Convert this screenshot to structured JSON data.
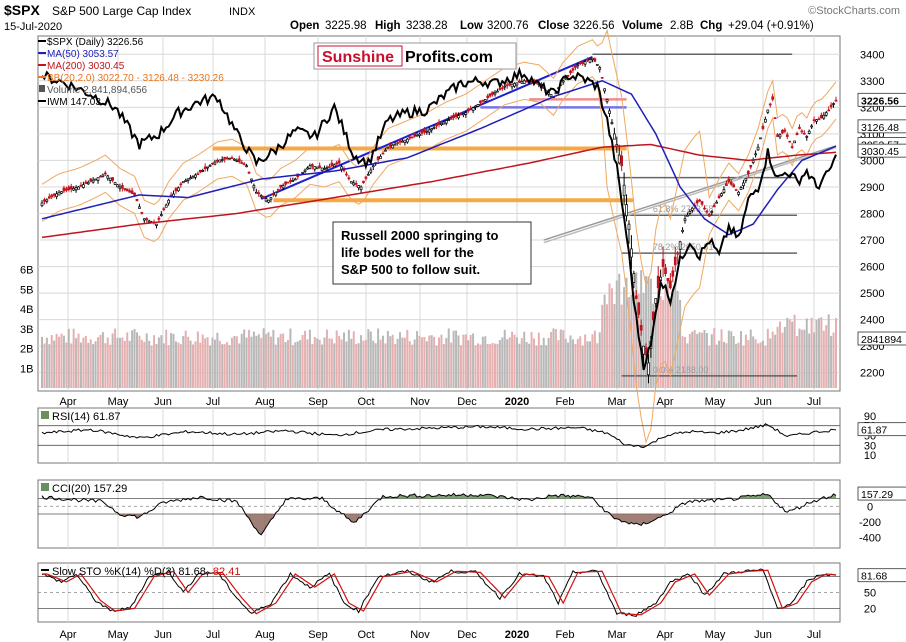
{
  "header": {
    "symbol": "$SPX",
    "name": "S&P 500 Large Cap Index",
    "exchange": "INDX",
    "date": "15-Jul-2020",
    "open_label": "Open",
    "open": "3225.98",
    "high_label": "High",
    "high": "3238.28",
    "low_label": "Low",
    "low": "3200.76",
    "close_label": "Close",
    "close": "3226.56",
    "volume_label": "Volume",
    "volume": "2.8B",
    "chg_label": "Chg",
    "chg": "+29.04 (+0.91%)",
    "watermark": "©StockCharts.com"
  },
  "legend": [
    {
      "text": "$SPX (Daily) 3226.56",
      "color": "#000000"
    },
    {
      "text": "MA(50) 3053.57",
      "color": "#1f1fb8"
    },
    {
      "text": "MA(200) 3030.45",
      "color": "#c0141e"
    },
    {
      "text": "BB(20,2.0) 3022.70 - 3126.48 - 3230.26",
      "color": "#e8771f"
    },
    {
      "text": "Volume 2,841,894,656",
      "color": "#555555"
    },
    {
      "text": "IWM 147.03",
      "color": "#000000"
    }
  ],
  "logo": {
    "part1": "Sunshine",
    "part2": "Profits.com",
    "color1": "#c8102e"
  },
  "annotation": "Russell 2000 springing to\nlife bodes well for the\nS&P 500 to follow suit.",
  "colors": {
    "up": "#000000",
    "down": "#c0141e",
    "ma50": "#1f1fb8",
    "ma200": "#c0141e",
    "bb": "#f0a860",
    "grid": "#d8d8d8",
    "fib": "#555555",
    "support": "#f5a030",
    "resistance": "#f08080",
    "trendline": "#2020d0",
    "volume": "#bdbdbd"
  },
  "chart_data": [
    {
      "type": "candlestick",
      "title": "$SPX S&P 500 Large Cap Index INDX",
      "ylim": [
        2150,
        3450
      ],
      "yticks": [
        2200,
        2300,
        2400,
        2500,
        2600,
        2700,
        2800,
        2900,
        3000,
        3100,
        3200,
        3300,
        3400
      ],
      "volume_ticks": [
        "6B",
        "5B",
        "4B",
        "3B",
        "2B",
        "1B"
      ],
      "volume_ylim_billions": [
        0,
        7.5
      ],
      "x_ticks": [
        "Apr",
        "May",
        "Jun",
        "Jul",
        "Aug",
        "Sep",
        "Oct",
        "Nov",
        "Dec",
        "2020",
        "Feb",
        "Mar",
        "Apr",
        "May",
        "Jun",
        "Jul"
      ],
      "price_anchors": [
        {
          "t": 0,
          "v": 2840
        },
        {
          "t": 7,
          "v": 2880
        },
        {
          "t": 15,
          "v": 2900
        },
        {
          "t": 22,
          "v": 2930
        },
        {
          "t": 26,
          "v": 2950
        },
        {
          "t": 32,
          "v": 2900
        },
        {
          "t": 38,
          "v": 2870
        },
        {
          "t": 42,
          "v": 2780
        },
        {
          "t": 47,
          "v": 2760
        },
        {
          "t": 52,
          "v": 2850
        },
        {
          "t": 58,
          "v": 2920
        },
        {
          "t": 64,
          "v": 2950
        },
        {
          "t": 72,
          "v": 3000
        },
        {
          "t": 78,
          "v": 3010
        },
        {
          "t": 84,
          "v": 2980
        },
        {
          "t": 88,
          "v": 2880
        },
        {
          "t": 93,
          "v": 2850
        },
        {
          "t": 98,
          "v": 2900
        },
        {
          "t": 104,
          "v": 2930
        },
        {
          "t": 110,
          "v": 2980
        },
        {
          "t": 116,
          "v": 2970
        },
        {
          "t": 122,
          "v": 2990
        },
        {
          "t": 127,
          "v": 2920
        },
        {
          "t": 131,
          "v": 2900
        },
        {
          "t": 136,
          "v": 2980
        },
        {
          "t": 142,
          "v": 3050
        },
        {
          "t": 150,
          "v": 3080
        },
        {
          "t": 158,
          "v": 3110
        },
        {
          "t": 166,
          "v": 3150
        },
        {
          "t": 174,
          "v": 3180
        },
        {
          "t": 182,
          "v": 3230
        },
        {
          "t": 190,
          "v": 3280
        },
        {
          "t": 198,
          "v": 3300
        },
        {
          "t": 204,
          "v": 3290
        },
        {
          "t": 210,
          "v": 3240
        },
        {
          "t": 214,
          "v": 3300
        },
        {
          "t": 220,
          "v": 3360
        },
        {
          "t": 226,
          "v": 3385
        },
        {
          "t": 229,
          "v": 3350
        },
        {
          "t": 232,
          "v": 3230
        },
        {
          "t": 235,
          "v": 3100
        },
        {
          "t": 238,
          "v": 2980
        },
        {
          "t": 241,
          "v": 2760
        },
        {
          "t": 244,
          "v": 2480
        },
        {
          "t": 247,
          "v": 2300
        },
        {
          "t": 249,
          "v": 2237
        },
        {
          "t": 252,
          "v": 2480
        },
        {
          "t": 255,
          "v": 2600
        },
        {
          "t": 258,
          "v": 2520
        },
        {
          "t": 261,
          "v": 2650
        },
        {
          "t": 264,
          "v": 2780
        },
        {
          "t": 267,
          "v": 2820
        },
        {
          "t": 270,
          "v": 2850
        },
        {
          "t": 274,
          "v": 2790
        },
        {
          "t": 278,
          "v": 2860
        },
        {
          "t": 282,
          "v": 2920
        },
        {
          "t": 286,
          "v": 2880
        },
        {
          "t": 290,
          "v": 2950
        },
        {
          "t": 294,
          "v": 3050
        },
        {
          "t": 298,
          "v": 3190
        },
        {
          "t": 300,
          "v": 3230
        },
        {
          "t": 302,
          "v": 3090
        },
        {
          "t": 305,
          "v": 3110
        },
        {
          "t": 308,
          "v": 3050
        },
        {
          "t": 311,
          "v": 3120
        },
        {
          "t": 314,
          "v": 3090
        },
        {
          "t": 317,
          "v": 3150
        },
        {
          "t": 320,
          "v": 3160
        },
        {
          "t": 323,
          "v": 3190
        },
        {
          "t": 326,
          "v": 3226.56
        }
      ],
      "iwm_anchors": [
        {
          "t": 0,
          "v": 3320
        },
        {
          "t": 10,
          "v": 3290
        },
        {
          "t": 20,
          "v": 3250
        },
        {
          "t": 30,
          "v": 3200
        },
        {
          "t": 40,
          "v": 3060
        },
        {
          "t": 48,
          "v": 3100
        },
        {
          "t": 56,
          "v": 3180
        },
        {
          "t": 64,
          "v": 3220
        },
        {
          "t": 72,
          "v": 3240
        },
        {
          "t": 80,
          "v": 3100
        },
        {
          "t": 88,
          "v": 2990
        },
        {
          "t": 96,
          "v": 3040
        },
        {
          "t": 104,
          "v": 3110
        },
        {
          "t": 112,
          "v": 3090
        },
        {
          "t": 120,
          "v": 3200
        },
        {
          "t": 128,
          "v": 3020
        },
        {
          "t": 134,
          "v": 2990
        },
        {
          "t": 142,
          "v": 3150
        },
        {
          "t": 150,
          "v": 3180
        },
        {
          "t": 158,
          "v": 3190
        },
        {
          "t": 166,
          "v": 3250
        },
        {
          "t": 172,
          "v": 3290
        },
        {
          "t": 180,
          "v": 3300
        },
        {
          "t": 186,
          "v": 3290
        },
        {
          "t": 192,
          "v": 3310
        },
        {
          "t": 198,
          "v": 3330
        },
        {
          "t": 204,
          "v": 3280
        },
        {
          "t": 210,
          "v": 3250
        },
        {
          "t": 216,
          "v": 3320
        },
        {
          "t": 222,
          "v": 3310
        },
        {
          "t": 228,
          "v": 3280
        },
        {
          "t": 232,
          "v": 3150
        },
        {
          "t": 236,
          "v": 2970
        },
        {
          "t": 240,
          "v": 2720
        },
        {
          "t": 244,
          "v": 2400
        },
        {
          "t": 247,
          "v": 2230
        },
        {
          "t": 250,
          "v": 2300
        },
        {
          "t": 254,
          "v": 2550
        },
        {
          "t": 258,
          "v": 2480
        },
        {
          "t": 262,
          "v": 2620
        },
        {
          "t": 266,
          "v": 2700
        },
        {
          "t": 270,
          "v": 2640
        },
        {
          "t": 274,
          "v": 2700
        },
        {
          "t": 278,
          "v": 2640
        },
        {
          "t": 282,
          "v": 2750
        },
        {
          "t": 286,
          "v": 2700
        },
        {
          "t": 290,
          "v": 2850
        },
        {
          "t": 294,
          "v": 2900
        },
        {
          "t": 298,
          "v": 3030
        },
        {
          "t": 302,
          "v": 2930
        },
        {
          "t": 306,
          "v": 2960
        },
        {
          "t": 310,
          "v": 2920
        },
        {
          "t": 314,
          "v": 2960
        },
        {
          "t": 318,
          "v": 2900
        },
        {
          "t": 322,
          "v": 2940
        },
        {
          "t": 326,
          "v": 3010
        }
      ],
      "series_ma50": [
        {
          "t": 0,
          "v": 2780
        },
        {
          "t": 40,
          "v": 2870
        },
        {
          "t": 60,
          "v": 2860
        },
        {
          "t": 90,
          "v": 2930
        },
        {
          "t": 120,
          "v": 2960
        },
        {
          "t": 150,
          "v": 3010
        },
        {
          "t": 180,
          "v": 3120
        },
        {
          "t": 210,
          "v": 3240
        },
        {
          "t": 230,
          "v": 3300
        },
        {
          "t": 242,
          "v": 3250
        },
        {
          "t": 252,
          "v": 3100
        },
        {
          "t": 262,
          "v": 2900
        },
        {
          "t": 272,
          "v": 2780
        },
        {
          "t": 282,
          "v": 2720
        },
        {
          "t": 292,
          "v": 2760
        },
        {
          "t": 302,
          "v": 2890
        },
        {
          "t": 312,
          "v": 3000
        },
        {
          "t": 326,
          "v": 3053.57
        }
      ],
      "series_ma200": [
        {
          "t": 0,
          "v": 2710
        },
        {
          "t": 40,
          "v": 2760
        },
        {
          "t": 80,
          "v": 2800
        },
        {
          "t": 120,
          "v": 2860
        },
        {
          "t": 160,
          "v": 2920
        },
        {
          "t": 200,
          "v": 2990
        },
        {
          "t": 230,
          "v": 3050
        },
        {
          "t": 250,
          "v": 3060
        },
        {
          "t": 270,
          "v": 3020
        },
        {
          "t": 290,
          "v": 3000
        },
        {
          "t": 310,
          "v": 3020
        },
        {
          "t": 326,
          "v": 3030.45
        }
      ],
      "horizontal_levels": [
        {
          "value": 3400,
          "kind": "fib",
          "from_t": 226,
          "to_t": 308
        },
        {
          "value": 3230,
          "kind": "resistance",
          "from_t": 200,
          "to_t": 240
        },
        {
          "value": 3200,
          "kind": "trend",
          "from_t": 180,
          "to_t": 240
        },
        {
          "value": 3045,
          "kind": "support",
          "from_t": 70,
          "to_t": 240
        },
        {
          "value": 2935,
          "kind": "fib",
          "from_t": 236,
          "to_t": 310
        },
        {
          "value": 2850,
          "kind": "support",
          "from_t": 95,
          "to_t": 243
        },
        {
          "value": 2793.58,
          "kind": "fib",
          "from_t": 238,
          "to_t": 310
        },
        {
          "value": 2650.81,
          "kind": "fib",
          "from_t": 238,
          "to_t": 310
        },
        {
          "value": 2188.0,
          "kind": "fib",
          "from_t": 238,
          "to_t": 310
        }
      ],
      "fib_labels": [
        "61.8",
        "2793.58",
        "78.2",
        "2650.81",
        "0.0",
        "2188.00"
      ],
      "right_labels": [
        "3226.56",
        "3126.48",
        "3053.57",
        "3030.45",
        "2841894"
      ]
    },
    {
      "type": "line",
      "title": "RSI(14) 61.87",
      "yticks": [
        90,
        70,
        50,
        30,
        10
      ],
      "ylim": [
        0,
        100
      ],
      "last": 61.87,
      "anchors": [
        {
          "t": 0,
          "v": 55
        },
        {
          "t": 20,
          "v": 62
        },
        {
          "t": 40,
          "v": 45
        },
        {
          "t": 60,
          "v": 58
        },
        {
          "t": 80,
          "v": 52
        },
        {
          "t": 100,
          "v": 60
        },
        {
          "t": 120,
          "v": 50
        },
        {
          "t": 140,
          "v": 62
        },
        {
          "t": 160,
          "v": 65
        },
        {
          "t": 180,
          "v": 68
        },
        {
          "t": 200,
          "v": 63
        },
        {
          "t": 220,
          "v": 66
        },
        {
          "t": 232,
          "v": 55
        },
        {
          "t": 240,
          "v": 30
        },
        {
          "t": 248,
          "v": 28
        },
        {
          "t": 256,
          "v": 50
        },
        {
          "t": 266,
          "v": 58
        },
        {
          "t": 276,
          "v": 55
        },
        {
          "t": 286,
          "v": 60
        },
        {
          "t": 298,
          "v": 72
        },
        {
          "t": 306,
          "v": 48
        },
        {
          "t": 316,
          "v": 56
        },
        {
          "t": 326,
          "v": 61.87
        }
      ]
    },
    {
      "type": "line",
      "title": "CCI(20) 157.29",
      "yticks": [
        200,
        0,
        -200,
        -400
      ],
      "ylim": [
        -500,
        300
      ],
      "last": 157.29,
      "anchors": [
        {
          "t": 0,
          "v": 120
        },
        {
          "t": 15,
          "v": 80
        },
        {
          "t": 25,
          "v": 60
        },
        {
          "t": 32,
          "v": -100
        },
        {
          "t": 40,
          "v": -140
        },
        {
          "t": 50,
          "v": 50
        },
        {
          "t": 65,
          "v": 120
        },
        {
          "t": 80,
          "v": 60
        },
        {
          "t": 90,
          "v": -380
        },
        {
          "t": 100,
          "v": 90
        },
        {
          "t": 115,
          "v": 100
        },
        {
          "t": 128,
          "v": -220
        },
        {
          "t": 140,
          "v": 130
        },
        {
          "t": 160,
          "v": 140
        },
        {
          "t": 180,
          "v": 150
        },
        {
          "t": 200,
          "v": 80
        },
        {
          "t": 210,
          "v": 140
        },
        {
          "t": 225,
          "v": 120
        },
        {
          "t": 235,
          "v": -160
        },
        {
          "t": 245,
          "v": -250
        },
        {
          "t": 255,
          "v": -130
        },
        {
          "t": 265,
          "v": 60
        },
        {
          "t": 280,
          "v": 80
        },
        {
          "t": 298,
          "v": 150
        },
        {
          "t": 306,
          "v": -80
        },
        {
          "t": 316,
          "v": 60
        },
        {
          "t": 326,
          "v": 157.29
        }
      ]
    },
    {
      "type": "line",
      "title": "Slow STO %K(14) %D(3) 81.68, 82.41",
      "k_label": "Slow STO %K(14) %D(3) 81.68,",
      "d_value": "82.41",
      "yticks": [
        80,
        50,
        20
      ],
      "ylim": [
        0,
        100
      ],
      "last_k": 81.68,
      "anchors": [
        {
          "t": 0,
          "v": 85
        },
        {
          "t": 8,
          "v": 70
        },
        {
          "t": 14,
          "v": 85
        },
        {
          "t": 22,
          "v": 35
        },
        {
          "t": 28,
          "v": 15
        },
        {
          "t": 36,
          "v": 20
        },
        {
          "t": 44,
          "v": 80
        },
        {
          "t": 52,
          "v": 90
        },
        {
          "t": 58,
          "v": 50
        },
        {
          "t": 64,
          "v": 85
        },
        {
          "t": 72,
          "v": 88
        },
        {
          "t": 80,
          "v": 40
        },
        {
          "t": 86,
          "v": 10
        },
        {
          "t": 94,
          "v": 30
        },
        {
          "t": 102,
          "v": 85
        },
        {
          "t": 110,
          "v": 60
        },
        {
          "t": 118,
          "v": 85
        },
        {
          "t": 124,
          "v": 30
        },
        {
          "t": 130,
          "v": 15
        },
        {
          "t": 138,
          "v": 80
        },
        {
          "t": 150,
          "v": 90
        },
        {
          "t": 160,
          "v": 70
        },
        {
          "t": 168,
          "v": 90
        },
        {
          "t": 178,
          "v": 88
        },
        {
          "t": 188,
          "v": 40
        },
        {
          "t": 196,
          "v": 85
        },
        {
          "t": 206,
          "v": 80
        },
        {
          "t": 212,
          "v": 30
        },
        {
          "t": 218,
          "v": 88
        },
        {
          "t": 228,
          "v": 90
        },
        {
          "t": 236,
          "v": 10
        },
        {
          "t": 244,
          "v": 8
        },
        {
          "t": 252,
          "v": 30
        },
        {
          "t": 258,
          "v": 70
        },
        {
          "t": 266,
          "v": 85
        },
        {
          "t": 272,
          "v": 45
        },
        {
          "t": 280,
          "v": 85
        },
        {
          "t": 288,
          "v": 90
        },
        {
          "t": 296,
          "v": 92
        },
        {
          "t": 302,
          "v": 20
        },
        {
          "t": 308,
          "v": 30
        },
        {
          "t": 314,
          "v": 70
        },
        {
          "t": 320,
          "v": 85
        },
        {
          "t": 326,
          "v": 81.68
        }
      ]
    }
  ]
}
